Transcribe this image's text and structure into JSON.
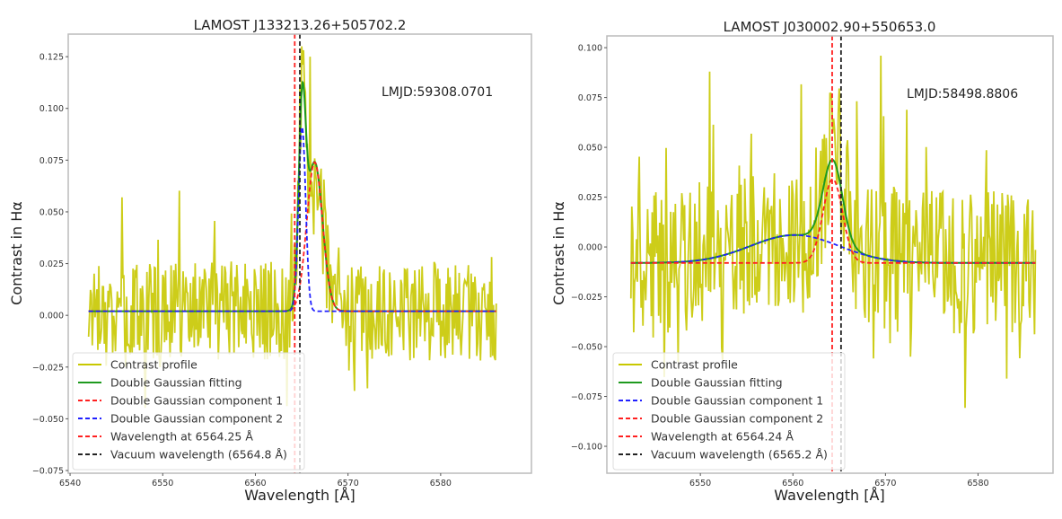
{
  "chart_data": [
    {
      "type": "line",
      "title": "LAMOST J133213.26+505702.2",
      "xlabel": "Wavelength [Å]",
      "ylabel": "Contrast in Hα",
      "xlim": [
        6539.8,
        6589.8
      ],
      "ylim": [
        -0.0763,
        0.1359
      ],
      "xticks": [
        6540,
        6550,
        6560,
        6570,
        6580
      ],
      "xtick_labels": [
        "6540",
        "6550",
        "6560",
        "6570",
        "6580"
      ],
      "yticks": [
        -0.075,
        -0.05,
        -0.025,
        0.0,
        0.025,
        0.05,
        0.075,
        0.1,
        0.125
      ],
      "ytick_labels": [
        "−0.075",
        "−0.050",
        "−0.025",
        "0.000",
        "0.025",
        "0.050",
        "0.075",
        "0.100",
        "0.125"
      ],
      "grid": false,
      "annotation": "LMJD:59308.0701",
      "legend_position": "lower-left",
      "data_range": [
        6542.0,
        6586.0
      ],
      "noise_seed": 17,
      "noise_amplitude": 0.03,
      "noise_spike_chance": 0.12,
      "baseline": 0.002,
      "components": [
        {
          "name": "Double Gaussian component 1",
          "color": "#ff2020",
          "amplitude": 0.072,
          "center": 6566.4,
          "sigma": 0.85
        },
        {
          "name": "Double Gaussian component 2",
          "color": "#2020ff",
          "amplitude": 0.089,
          "center": 6565.05,
          "sigma": 0.38
        }
      ],
      "peak_boost": [
        {
          "center": 6565.0,
          "value": 0.13
        },
        {
          "center": 6565.9,
          "value": 0.125
        }
      ],
      "vlines": [
        {
          "name": "Wavelength at 6564.25 Å",
          "x": 6564.25,
          "color": "#ff2020"
        },
        {
          "name": "Vacuum wavelength (6564.8 Å)",
          "x": 6564.8,
          "color": "#222222"
        }
      ],
      "legend": [
        {
          "label": "Contrast profile",
          "color": "#c8c800",
          "style": "solid"
        },
        {
          "label": "Double Gaussian fitting",
          "color": "#1f9a1f",
          "style": "solid"
        },
        {
          "label": "Double Gaussian component 1",
          "color": "#ff2020",
          "style": "dashed"
        },
        {
          "label": "Double Gaussian component 2",
          "color": "#2020ff",
          "style": "dashed"
        },
        {
          "label": "Wavelength at 6564.25 Å",
          "color": "#ff2020",
          "style": "dashed"
        },
        {
          "label": "Vacuum wavelength (6564.8 Å)",
          "color": "#222222",
          "style": "dashed"
        }
      ]
    },
    {
      "type": "line",
      "title": "LAMOST J030002.90+550653.0",
      "xlabel": "Wavelength [Å]",
      "ylabel": "Contrast in Hα",
      "xlim": [
        6539.9,
        6588.1
      ],
      "ylim": [
        -0.1135,
        0.1059
      ],
      "xticks": [
        6550,
        6560,
        6570,
        6580
      ],
      "xtick_labels": [
        "6550",
        "6560",
        "6570",
        "6580"
      ],
      "yticks": [
        -0.1,
        -0.075,
        -0.05,
        -0.025,
        0.0,
        0.025,
        0.05,
        0.075,
        0.1
      ],
      "ytick_labels": [
        "−0.100",
        "−0.075",
        "−0.050",
        "−0.025",
        "0.000",
        "0.025",
        "0.050",
        "0.075",
        "0.100"
      ],
      "grid": false,
      "annotation": "LMJD:58498.8806",
      "legend_position": "lower-left",
      "data_range": [
        6542.5,
        6586.2
      ],
      "noise_seed": 41,
      "noise_amplitude": 0.045,
      "noise_spike_chance": 0.15,
      "baseline": -0.008,
      "components": [
        {
          "name": "Double Gaussian component 1",
          "color": "#2020ff",
          "amplitude": 0.014,
          "center": 6560.2,
          "sigma": 4.8
        },
        {
          "name": "Double Gaussian component 2",
          "color": "#ff2020",
          "amplitude": 0.042,
          "center": 6564.3,
          "sigma": 1.05
        }
      ],
      "peak_boost": [
        {
          "center": 6551.0,
          "value": 0.088
        },
        {
          "center": 6569.5,
          "value": 0.096
        },
        {
          "center": 6564.0,
          "value": 0.077
        }
      ],
      "vlines": [
        {
          "name": "Wavelength at 6564.24 Å",
          "x": 6564.24,
          "color": "#ff2020"
        },
        {
          "name": "Vacuum wavelength (6565.2 Å)",
          "x": 6565.2,
          "color": "#222222"
        }
      ],
      "legend": [
        {
          "label": "Contrast profile",
          "color": "#c8c800",
          "style": "solid"
        },
        {
          "label": "Double Gaussian fitting",
          "color": "#1f9a1f",
          "style": "solid"
        },
        {
          "label": "Double Gaussian component 1",
          "color": "#2020ff",
          "style": "dashed"
        },
        {
          "label": "Double Gaussian component 2",
          "color": "#ff2020",
          "style": "dashed"
        },
        {
          "label": "Wavelength at 6564.24 Å",
          "color": "#ff2020",
          "style": "dashed"
        },
        {
          "label": "Vacuum wavelength (6565.2 Å)",
          "color": "#222222",
          "style": "dashed"
        }
      ]
    }
  ]
}
